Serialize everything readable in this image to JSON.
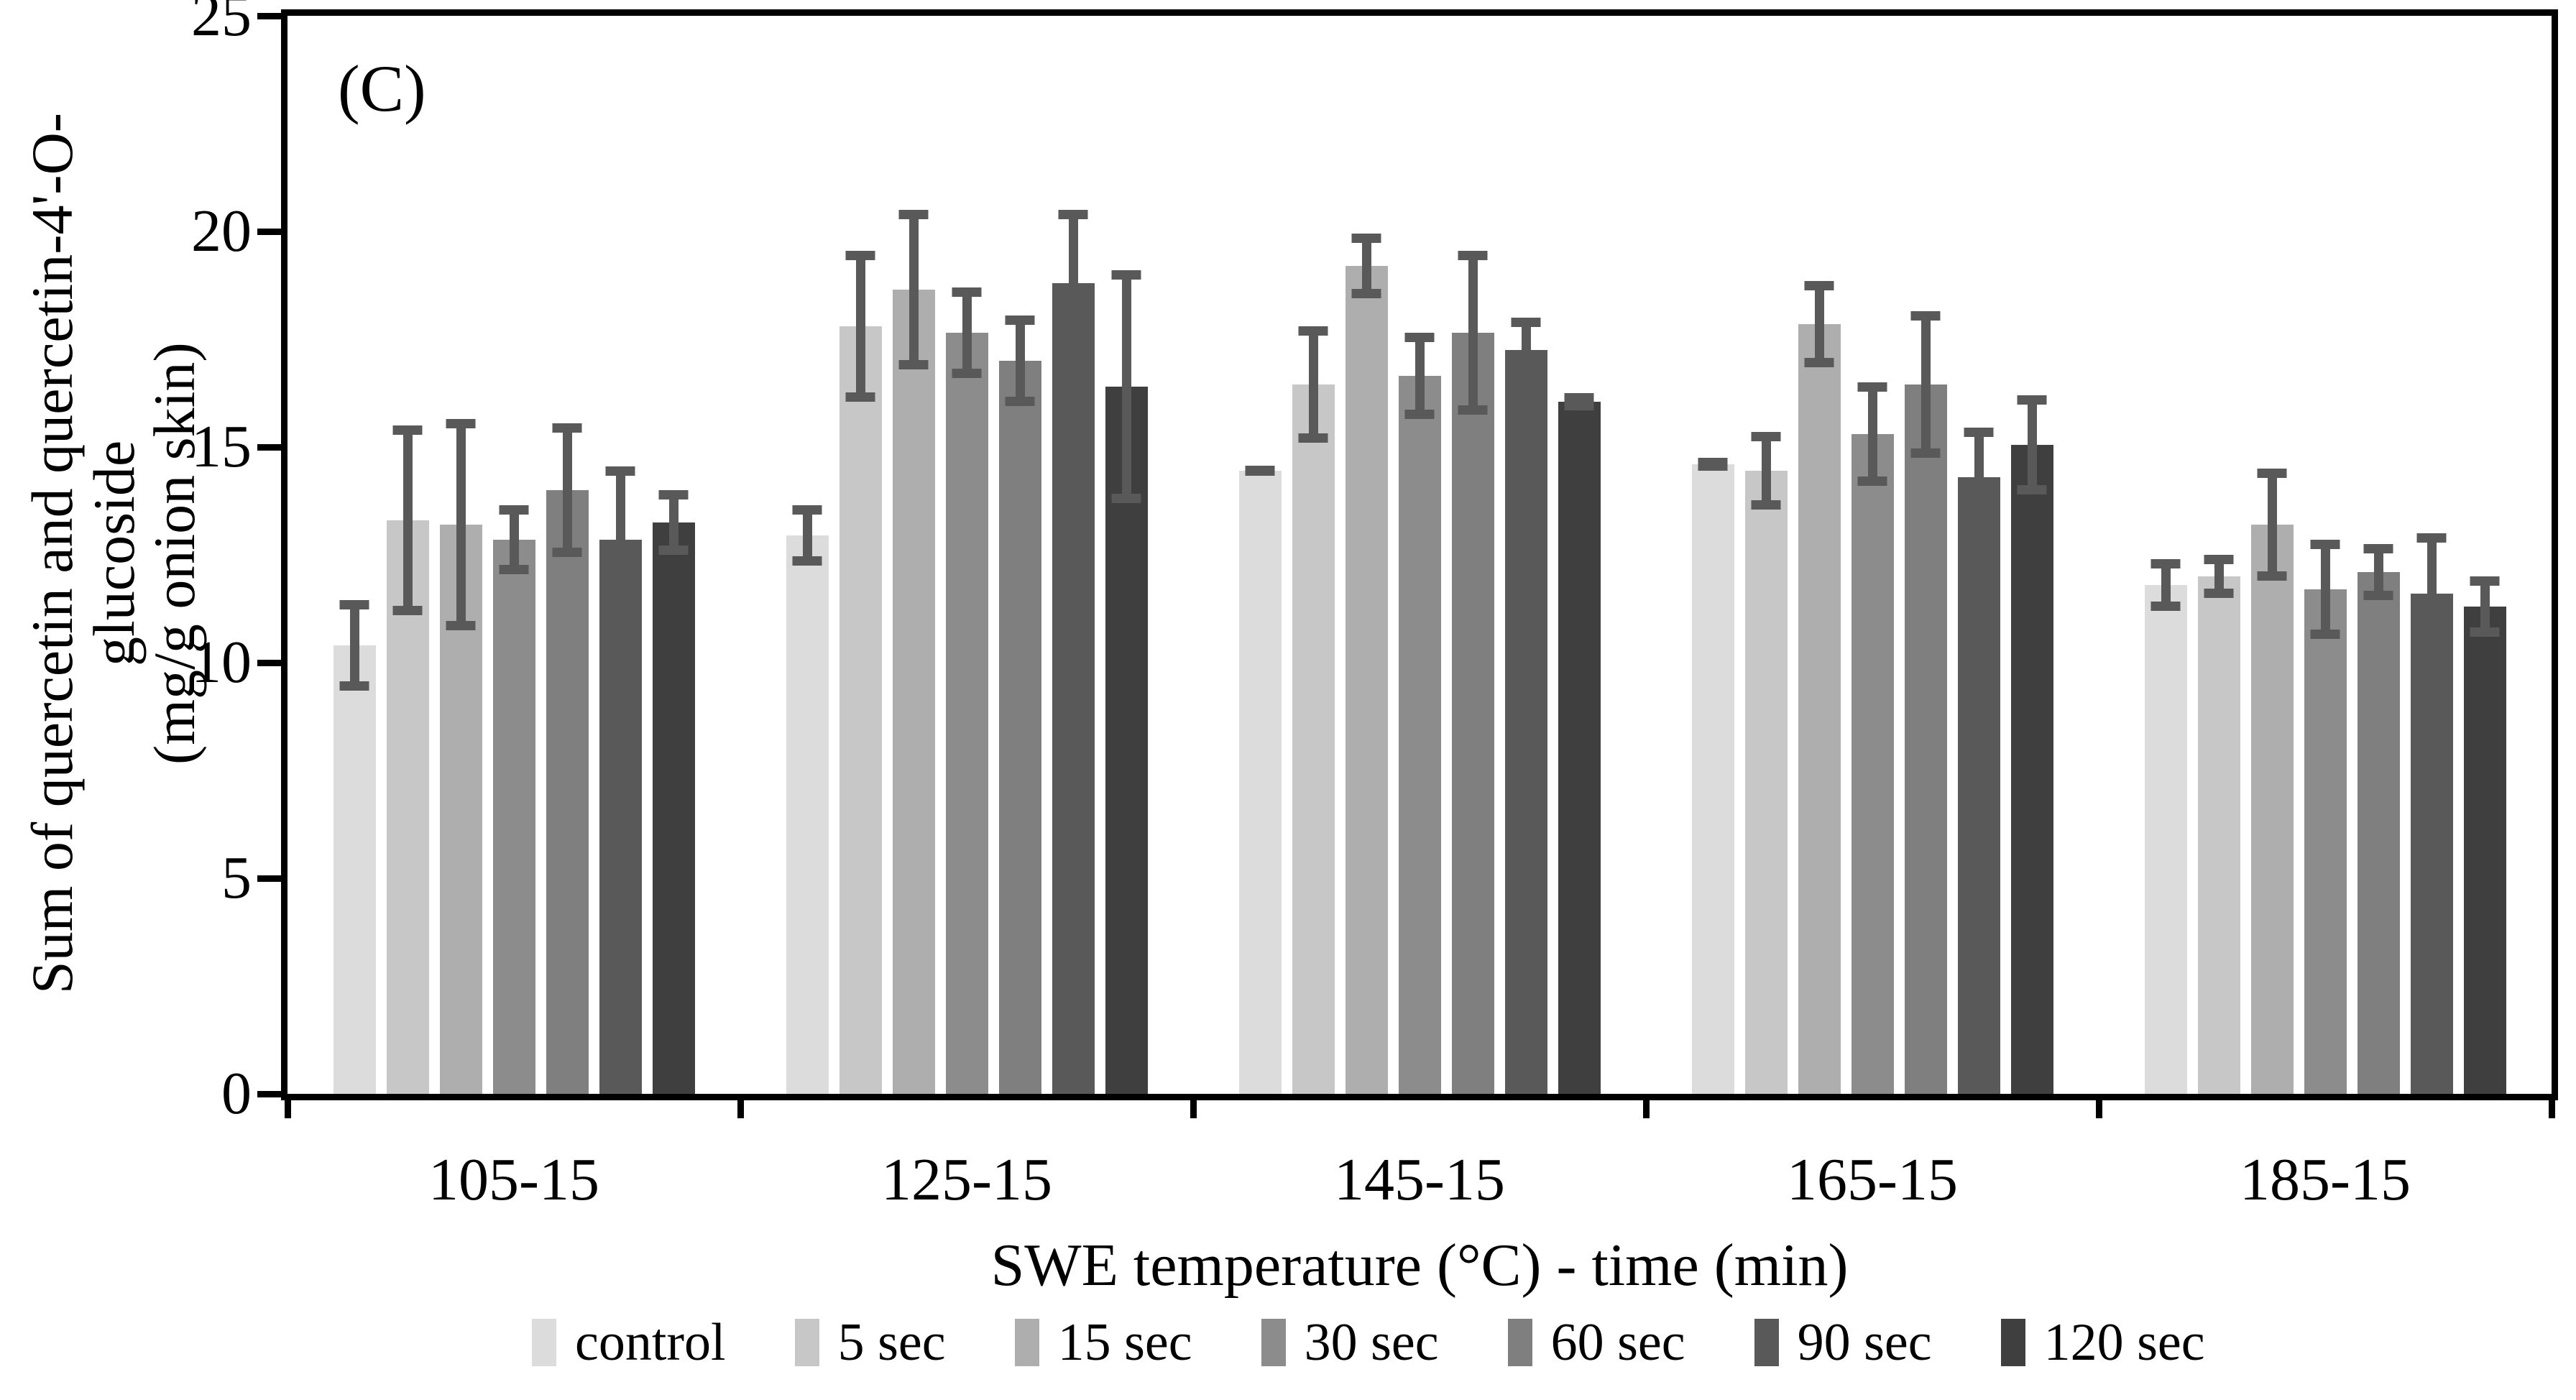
{
  "panel_label": "(C)",
  "axes": {
    "ylabel_line1": "Sum of quercetin and quercetin-4'-O-glucoside",
    "ylabel_line2": "(mg/g onion skin)",
    "xlabel": "SWE temperature (°C) - time (min)"
  },
  "chart_data": {
    "type": "bar",
    "title": "",
    "panel": "(C)",
    "xlabel": "SWE temperature (°C) - time (min)",
    "ylabel": "Sum of quercetin and quercetin-4'-O-glucoside (mg/g onion skin)",
    "ylim": [
      0,
      25
    ],
    "yticks": [
      0,
      5,
      10,
      15,
      20,
      25
    ],
    "grid": false,
    "legend_position": "bottom",
    "error_bar_color": "#595959",
    "categories": [
      "105-15",
      "125-15",
      "145-15",
      "165-15",
      "185-15"
    ],
    "series": [
      {
        "name": "control",
        "color": "#dcdcdc",
        "values": [
          10.4,
          12.95,
          14.45,
          14.6,
          11.8
        ],
        "errors": [
          1.05,
          0.7,
          0.1,
          0.15,
          0.6
        ]
      },
      {
        "name": "5 sec",
        "color": "#c7c7c7",
        "values": [
          13.3,
          17.8,
          16.45,
          14.45,
          12.0
        ],
        "errors": [
          2.2,
          1.75,
          1.35,
          0.9,
          0.5
        ]
      },
      {
        "name": "15 sec",
        "color": "#aeaeae",
        "values": [
          13.2,
          18.65,
          19.2,
          17.85,
          13.2
        ],
        "errors": [
          2.45,
          1.85,
          0.75,
          1.0,
          1.3
        ]
      },
      {
        "name": "30 sec",
        "color": "#8c8c8c",
        "values": [
          12.85,
          17.65,
          16.65,
          15.3,
          11.7
        ],
        "errors": [
          0.8,
          1.05,
          1.0,
          1.2,
          1.15
        ]
      },
      {
        "name": "60 sec",
        "color": "#7f7f7f",
        "values": [
          14.0,
          17.0,
          17.65,
          16.45,
          12.1
        ],
        "errors": [
          1.55,
          1.05,
          1.9,
          1.7,
          0.65
        ]
      },
      {
        "name": "90 sec",
        "color": "#595959",
        "values": [
          12.85,
          18.8,
          17.25,
          14.3,
          11.6
        ],
        "errors": [
          1.7,
          1.7,
          0.75,
          1.15,
          1.4
        ]
      },
      {
        "name": "120 sec",
        "color": "#3f3f3f",
        "values": [
          13.25,
          16.4,
          16.05,
          15.05,
          11.3
        ],
        "errors": [
          0.75,
          2.7,
          0.2,
          1.15,
          0.7
        ]
      }
    ]
  },
  "legend_labels": [
    "control",
    "5 sec",
    "15 sec",
    "30 sec",
    "60 sec",
    "90 sec",
    "120 sec"
  ]
}
